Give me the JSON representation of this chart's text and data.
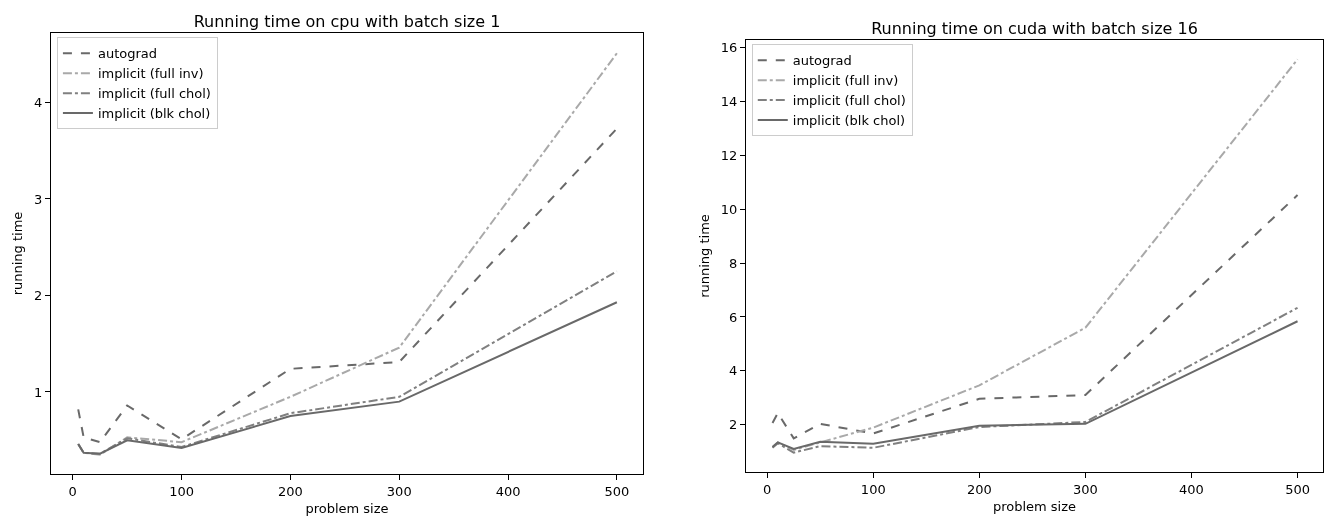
{
  "chart_data": [
    {
      "type": "line",
      "title": "Running time on cpu with batch size 1",
      "xlabel": "problem size",
      "ylabel": "running time",
      "x": [
        5,
        10,
        25,
        50,
        100,
        200,
        300,
        500
      ],
      "series": [
        {
          "name": "autograd",
          "color": "#696969",
          "line_style": "dashed",
          "values": [
            0.82,
            0.53,
            0.48,
            0.86,
            0.51,
            1.24,
            1.31,
            3.73
          ]
        },
        {
          "name": "implicit (full inv)",
          "color": "#a9a9a9",
          "line_style": "dashdot",
          "values": [
            0.46,
            0.37,
            0.35,
            0.53,
            0.48,
            0.95,
            1.46,
            4.51
          ]
        },
        {
          "name": "implicit (full chol)",
          "color": "#808080",
          "line_style": "dashdot",
          "values": [
            0.46,
            0.37,
            0.36,
            0.52,
            0.43,
            0.78,
            0.95,
            2.25
          ]
        },
        {
          "name": "implicit (blk chol)",
          "color": "#696969",
          "line_style": "solid",
          "values": [
            0.46,
            0.37,
            0.36,
            0.5,
            0.42,
            0.75,
            0.9,
            1.93
          ]
        }
      ],
      "xlim": [
        -20,
        524
      ],
      "xticks": [
        0,
        100,
        200,
        300,
        400,
        500
      ],
      "ylim": [
        0.15,
        4.72
      ],
      "yticks": [
        1,
        2,
        3,
        4
      ],
      "grid": false,
      "legend": "top left",
      "marker": "none"
    },
    {
      "type": "line",
      "title": "Running time on cuda with batch size 16",
      "xlabel": "problem size",
      "ylabel": "running time",
      "x": [
        5,
        10,
        25,
        50,
        100,
        200,
        300,
        500
      ],
      "series": [
        {
          "name": "autograd",
          "color": "#696969",
          "line_style": "dashed",
          "values": [
            2.06,
            2.43,
            1.49,
            2.03,
            1.67,
            2.96,
            3.1,
            10.53
          ]
        },
        {
          "name": "implicit (full inv)",
          "color": "#a9a9a9",
          "line_style": "dashdot",
          "values": [
            1.17,
            1.34,
            1.06,
            1.34,
            1.89,
            3.46,
            5.6,
            15.57
          ]
        },
        {
          "name": "implicit (full chol)",
          "color": "#808080",
          "line_style": "dashdot",
          "values": [
            1.14,
            1.31,
            0.96,
            1.2,
            1.14,
            1.91,
            2.1,
            6.34
          ]
        },
        {
          "name": "implicit (blk chol)",
          "color": "#696969",
          "line_style": "solid",
          "values": [
            1.17,
            1.34,
            1.1,
            1.36,
            1.29,
            1.96,
            2.03,
            5.84
          ]
        }
      ],
      "xlim": [
        -20,
        524
      ],
      "xticks": [
        0,
        100,
        200,
        300,
        400,
        500
      ],
      "ylim": [
        0.24,
        16.29
      ],
      "yticks": [
        2,
        4,
        6,
        8,
        10,
        12,
        14,
        16
      ],
      "grid": false,
      "legend": "top left",
      "marker": "none"
    }
  ]
}
